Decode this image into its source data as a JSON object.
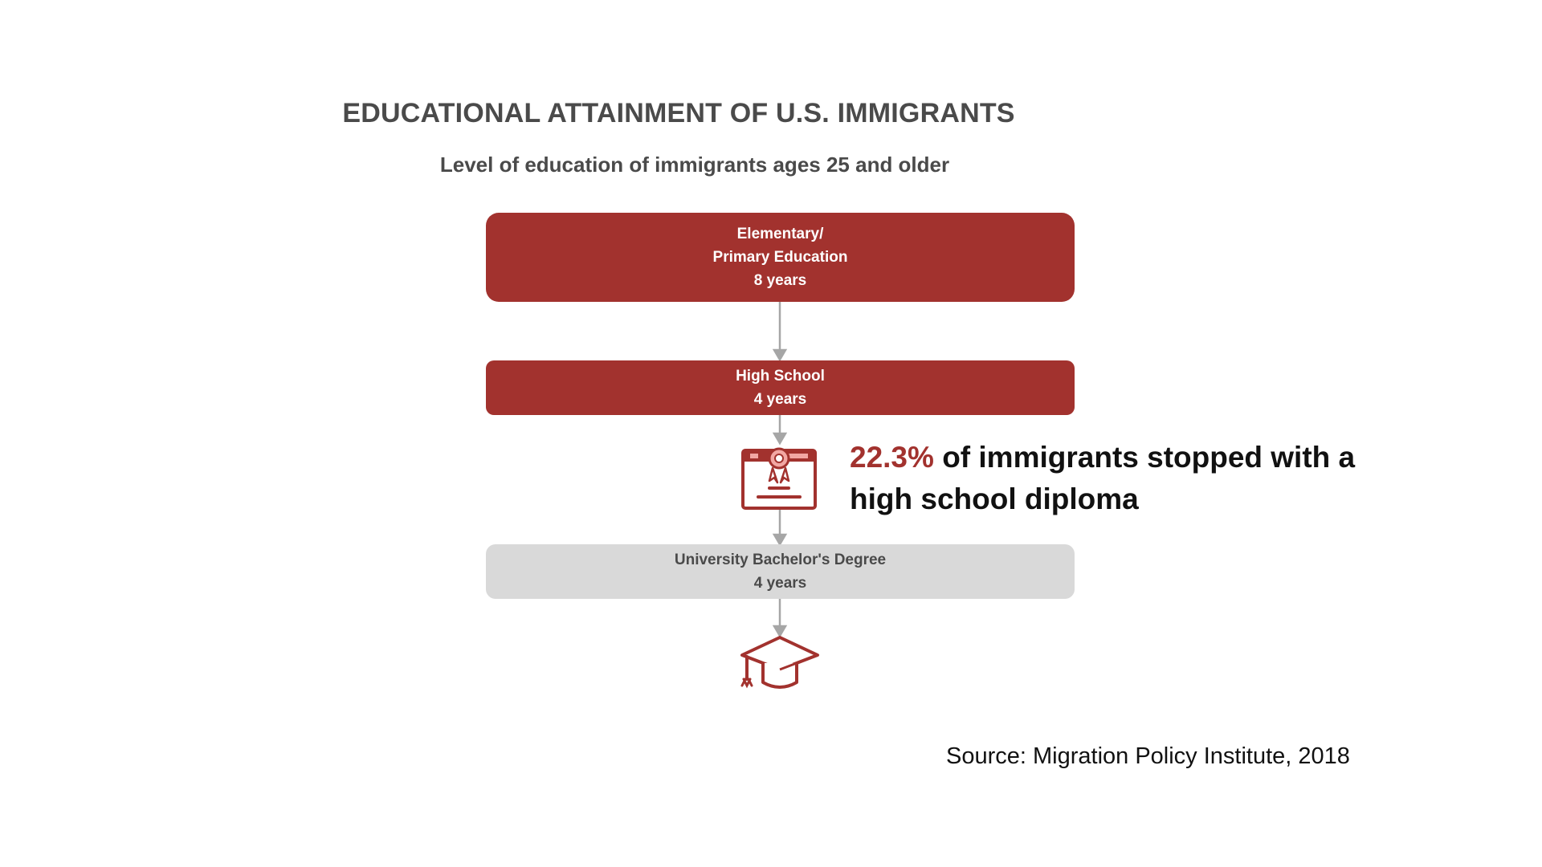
{
  "title": "EDUCATIONAL ATTAINMENT OF U.S. IMMIGRANTS",
  "subtitle": "Level of education of immigrants ages 25 and older",
  "steps": [
    {
      "line1": "Elementary/",
      "line2": "Primary Education",
      "line3": "8 years",
      "color": "#a2322e"
    },
    {
      "line1": "High School",
      "line2": "4 years",
      "color": "#a2322e"
    },
    {
      "line1": "University Bachelor's Degree",
      "line2": "4 years",
      "color": "#d9d9d9"
    }
  ],
  "callout": {
    "percent": "22.3%",
    "text": "of immigrants stopped with a high school diploma"
  },
  "icons": {
    "diploma": "diploma-icon",
    "graduation": "graduation-cap-icon"
  },
  "source": "Source: Migration Policy Institute, 2018",
  "colors": {
    "accent": "#a2322e",
    "neutral": "#d9d9d9",
    "arrow": "#a6a6a6",
    "heading": "#4a4a4a"
  }
}
